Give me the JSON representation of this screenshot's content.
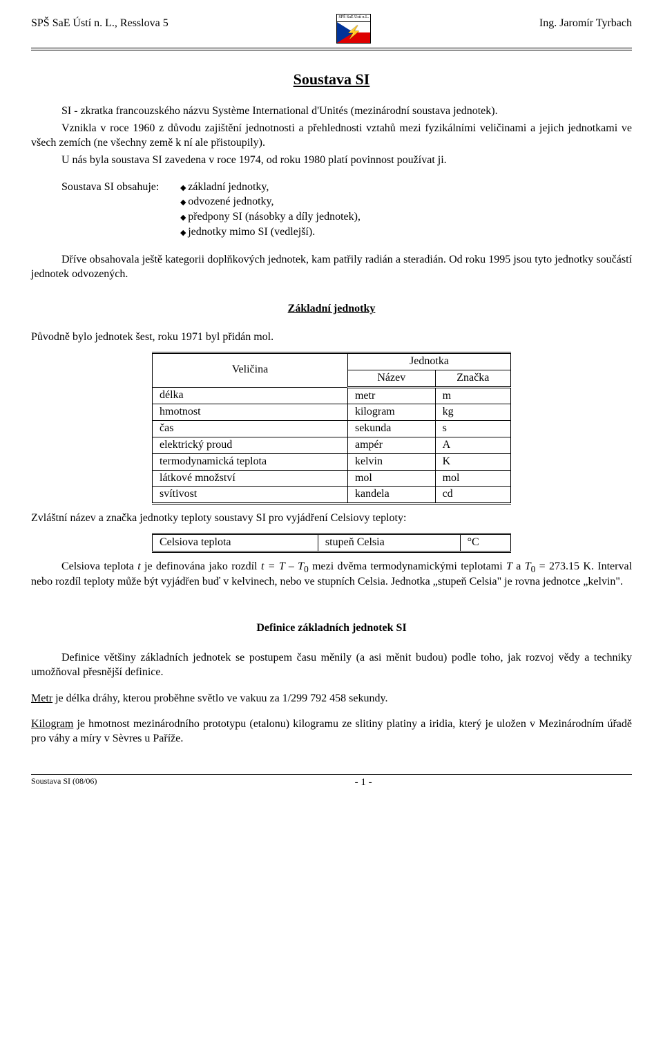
{
  "header": {
    "left": "SPŠ SaE Ústí n. L., Resslova 5",
    "right": "Ing. Jaromír Tyrbach",
    "logo_text": "SPŠ SaE Ústí n.L."
  },
  "title": "Soustava SI",
  "intro": {
    "p1": "SI - zkratka francouzského názvu Système International d'Unités (mezinárodní soustava jednotek).",
    "p2": "Vznikla v roce 1960 z důvodu zajištění jednotnosti a přehlednosti vztahů mezi fyzikálními veličinami a jejich jednotkami ve všech zemích (ne všechny země k ní ale přistoupily).",
    "p3": "U nás byla soustava SI zavedena v roce 1974, od roku 1980 platí povinnost používat ji."
  },
  "contains": {
    "label": "Soustava SI obsahuje:",
    "items": [
      "základní jednotky,",
      "odvozené jednotky,",
      "předpony SI (násobky a díly jednotek),",
      "jednotky mimo SI (vedlejší)."
    ]
  },
  "para_drive": "Dříve obsahovala ještě kategorii doplňkových jednotek, kam patřily radián a steradián. Od roku 1995 jsou tyto jednotky součástí jednotek odvozených.",
  "section_basic": "Základní jednotky",
  "para_puvodne": "Původně bylo jednotek šest, roku 1971 byl přidán mol.",
  "table_main": {
    "head_velicina": "Veličina",
    "head_jednotka": "Jednotka",
    "head_nazev": "Název",
    "head_znacka": "Značka",
    "rows": [
      {
        "v": "délka",
        "n": "metr",
        "z": "m"
      },
      {
        "v": "hmotnost",
        "n": "kilogram",
        "z": "kg"
      },
      {
        "v": "čas",
        "n": "sekunda",
        "z": "s"
      },
      {
        "v": "elektrický proud",
        "n": "ampér",
        "z": "A"
      },
      {
        "v": "termodynamická teplota",
        "n": "kelvin",
        "z": "K"
      },
      {
        "v": "látkové množství",
        "n": "mol",
        "z": "mol"
      },
      {
        "v": "svítivost",
        "n": "kandela",
        "z": "cd"
      }
    ]
  },
  "para_zvlastni": "Zvláštní název a značka jednotky teploty soustavy SI pro vyjádření Celsiovy teploty:",
  "table_celsius": {
    "v": "Celsiova teplota",
    "n": "stupeň Celsia",
    "z": "°C"
  },
  "para_celsius_html": "Celsiova teplota <span class=\"italic\">t</span> je definována jako rozdíl <span class=\"italic\">t = T – T</span><sub>0</sub> mezi dvěma termodynamickými teplotami <span class=\"italic\">T</span> a <span class=\"italic\">T</span><sub>0</sub> = 273.15 K. Interval nebo rozdíl teploty může být vyjádřen buď v kelvinech, nebo ve stupních Celsia. Jednotka „stupeň Celsia\" je rovna jednotce „kelvin\".",
  "subsection_def": "Definice základních jednotek SI",
  "para_def_intro": "Definice většiny základních jednotek se postupem času měnily (a asi měnit budou) podle toho, jak rozvoj vědy a techniky umožňoval přesnější definice.",
  "def_metr": {
    "term": "Metr",
    "text": " je délka dráhy, kterou proběhne světlo ve vakuu za 1/299 792 458 sekundy."
  },
  "def_kilogram": {
    "term": "Kilogram",
    "text": " je hmotnost mezinárodního prototypu (etalonu) kilogramu ze slitiny platiny a iridia, který je uložen v Mezinárodním úřadě pro váhy a míry v Sèvres u Paříže."
  },
  "footer": {
    "left": "Soustava SI (08/06)",
    "page": "- 1 -"
  }
}
